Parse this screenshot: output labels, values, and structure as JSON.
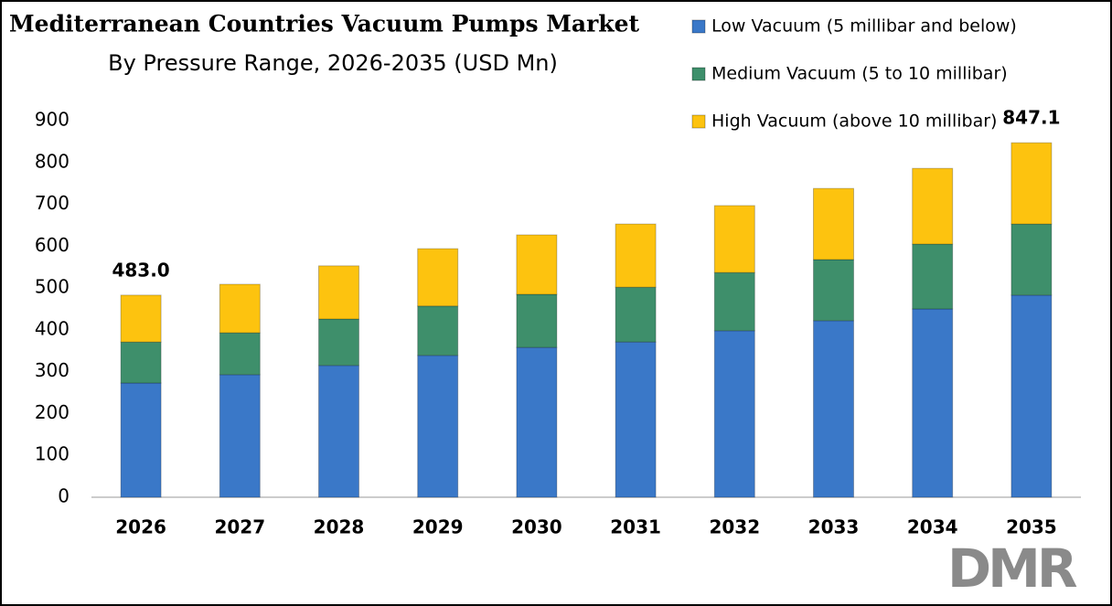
{
  "chart_data": {
    "type": "stacked_bar",
    "title": "Mediterranean Countries Vacuum Pumps Market",
    "subtitle": "By Pressure Range, 2026-2035 (USD Mn)",
    "categories": [
      "2026",
      "2027",
      "2028",
      "2029",
      "2030",
      "2031",
      "2032",
      "2033",
      "2034",
      "2035"
    ],
    "series": [
      {
        "name": "Low Vacuum (5 millibar and below)",
        "color": "#3a78c8",
        "values": [
          273,
          293,
          315,
          339,
          358,
          371,
          398,
          422,
          450,
          483
        ]
      },
      {
        "name": "Medium Vacuum (5 to 10 millibar)",
        "color": "#3e8f6b",
        "values": [
          98,
          100,
          111,
          118,
          127,
          131,
          139,
          146,
          155,
          170
        ]
      },
      {
        "name": "High Vacuum (above 10 millibar)",
        "color": "#fdc30f",
        "values": [
          112,
          116,
          127,
          137,
          142,
          151,
          160,
          170,
          181,
          194.1
        ]
      }
    ],
    "totals": [
      483,
      null,
      null,
      null,
      null,
      null,
      null,
      null,
      null,
      847.1
    ],
    "total_labels": [
      "483.0",
      null,
      null,
      null,
      null,
      null,
      null,
      null,
      null,
      "847.1"
    ],
    "ylim": [
      0,
      900
    ],
    "yticks": [
      0,
      100,
      200,
      300,
      400,
      500,
      600,
      700,
      800,
      900
    ],
    "grid": false,
    "legend": "top-right",
    "logo": "DMR"
  }
}
